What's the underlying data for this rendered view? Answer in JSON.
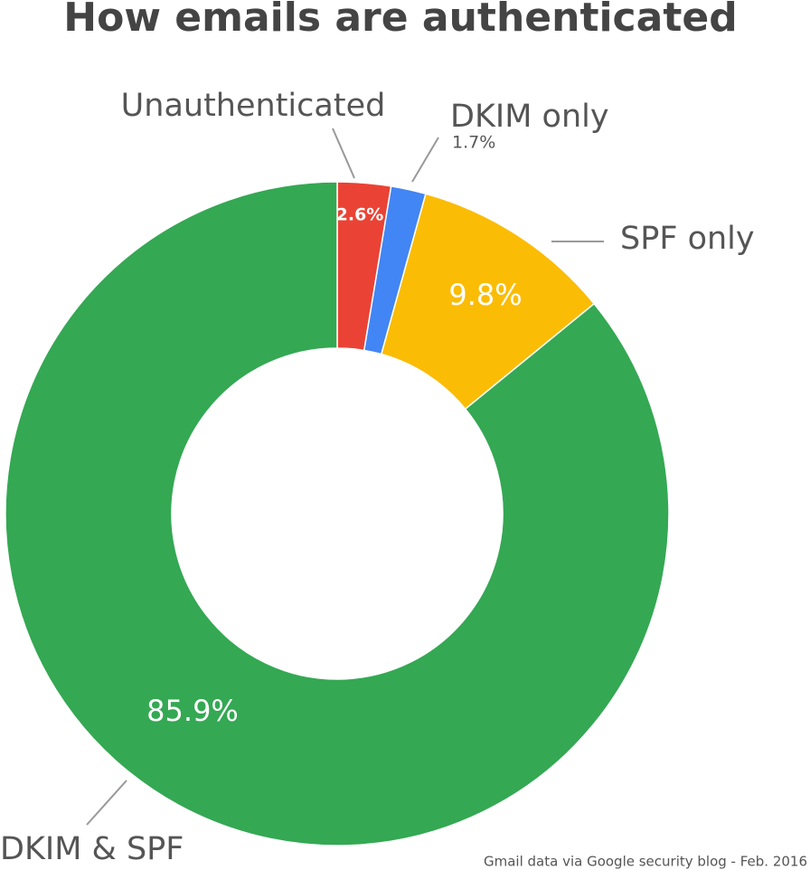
{
  "chart_data": {
    "type": "donut",
    "title": "How emails are authenticated",
    "categories": [
      "Unauthenticated",
      "DKIM only",
      "SPF only",
      "DKIM & SPF"
    ],
    "values": [
      2.6,
      1.7,
      9.8,
      85.9
    ],
    "value_labels": [
      "2.6%",
      "1.7%",
      "9.8%",
      "85.9%"
    ],
    "colors": [
      "#ea4335",
      "#4285f4",
      "#fbbc05",
      "#34a853"
    ],
    "source": "Gmail data via Google security blog - Feb. 2016"
  }
}
